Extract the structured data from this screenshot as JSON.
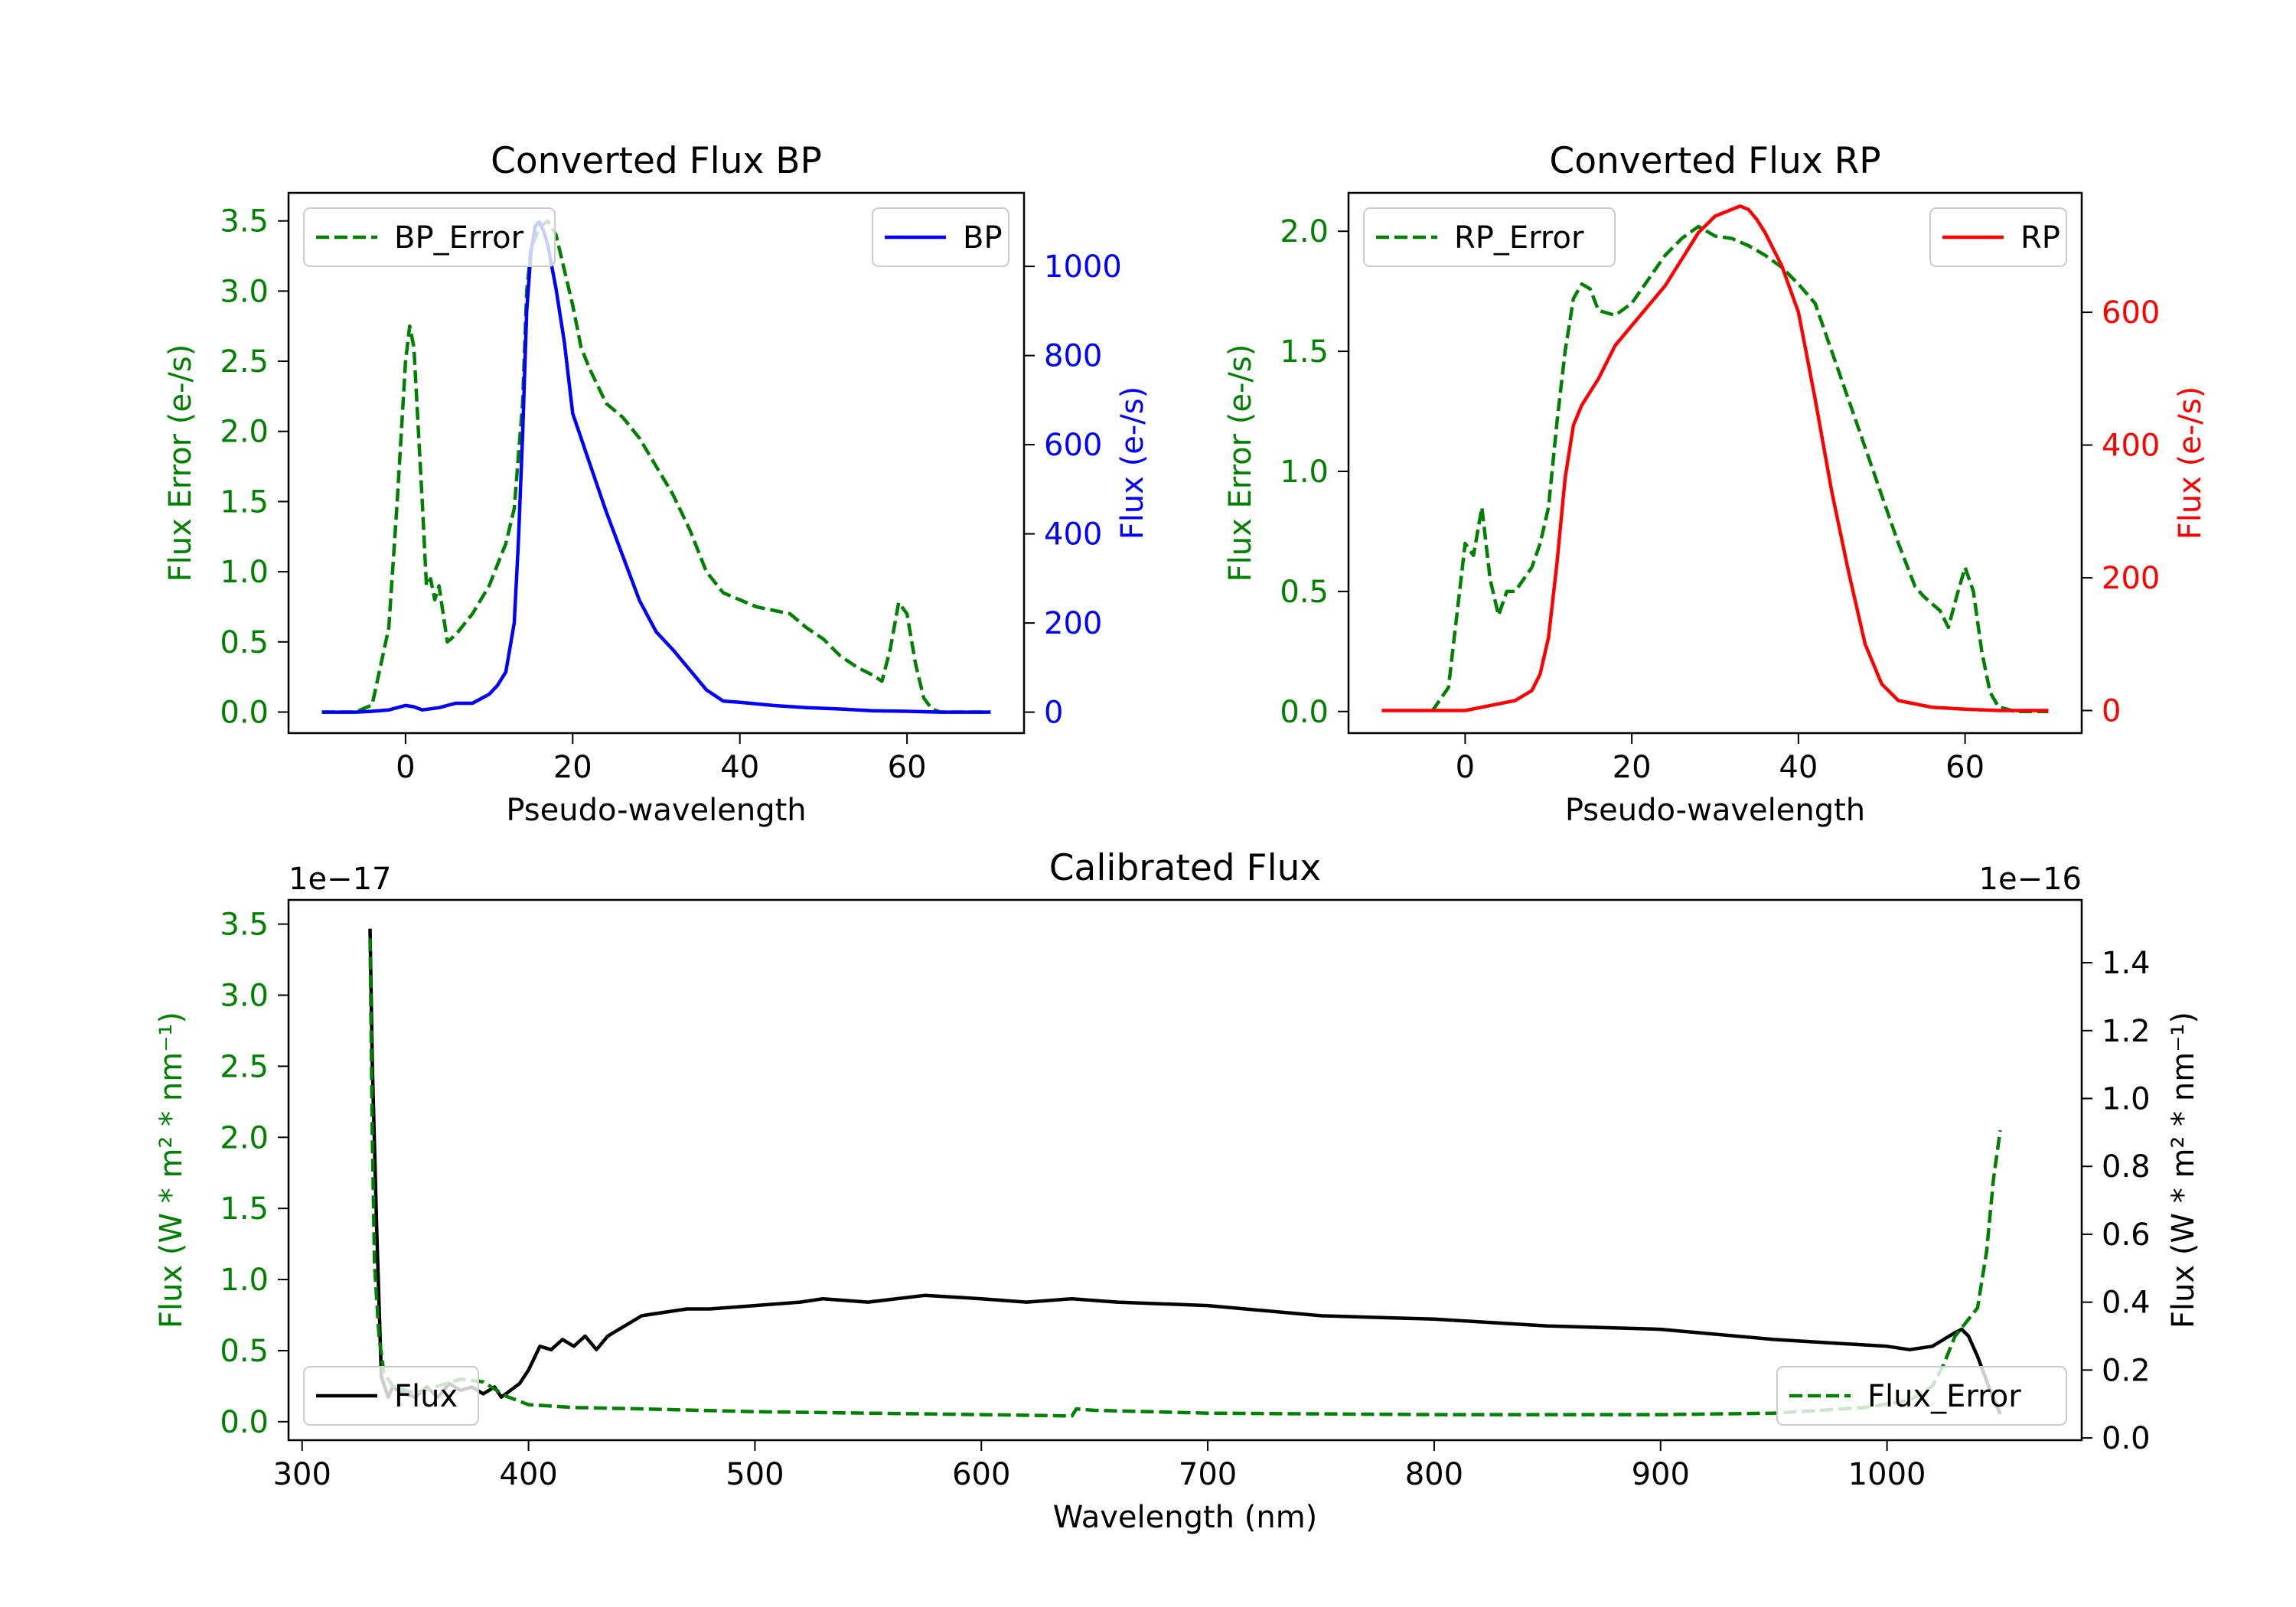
{
  "chart_data": [
    {
      "type": "line",
      "title": "Converted Flux BP",
      "xlabel": "Pseudo-wavelength",
      "ylabel_left": "Flux Error (e-/s)",
      "ylabel_right": "Flux (e-/s)",
      "xlim": [
        -14,
        74
      ],
      "ylim_left": [
        -0.15,
        3.7
      ],
      "ylim_right": [
        -47,
        1165
      ],
      "xticks": [
        0,
        20,
        40,
        60
      ],
      "yticks_left": [
        0.0,
        0.5,
        1.0,
        1.5,
        2.0,
        2.5,
        3.0,
        3.5
      ],
      "yticks_right": [
        0,
        200,
        400,
        600,
        800,
        1000
      ],
      "colors": {
        "left": "#008000",
        "right": "#0000ff"
      },
      "series": [
        {
          "name": "BP_Error",
          "axis": "left",
          "style": "dashed",
          "color": "#008000",
          "legend": "top-left",
          "x": [
            -10,
            -6,
            -4,
            -2,
            -1,
            0,
            0.5,
            1,
            2,
            2.5,
            3,
            3.5,
            4,
            5,
            6,
            8,
            10,
            12,
            13,
            14,
            14.5,
            15,
            16,
            17,
            18,
            20,
            21,
            22,
            24,
            26,
            28,
            30,
            32,
            34,
            36,
            38,
            40,
            42,
            46,
            48,
            50,
            52,
            54,
            56,
            57,
            58,
            59,
            60,
            61,
            62,
            63,
            64,
            66,
            70
          ],
          "values": [
            0,
            0,
            0.05,
            0.6,
            1.5,
            2.5,
            2.75,
            2.6,
            1.5,
            0.9,
            0.95,
            0.8,
            0.9,
            0.5,
            0.55,
            0.7,
            0.9,
            1.2,
            1.45,
            2.2,
            3.0,
            3.3,
            3.45,
            3.5,
            3.4,
            2.9,
            2.6,
            2.45,
            2.2,
            2.1,
            1.95,
            1.75,
            1.55,
            1.3,
            1.0,
            0.85,
            0.8,
            0.75,
            0.7,
            0.6,
            0.52,
            0.4,
            0.32,
            0.26,
            0.22,
            0.45,
            0.78,
            0.7,
            0.35,
            0.1,
            0.02,
            0,
            0,
            0
          ]
        },
        {
          "name": "BP",
          "axis": "right",
          "style": "solid",
          "color": "#0000ff",
          "legend": "top-right",
          "x": [
            -10,
            -6,
            -4,
            -2,
            0,
            1,
            2,
            4,
            6,
            8,
            10,
            11,
            12,
            13,
            13.5,
            14,
            14.5,
            15,
            15.5,
            16,
            16.5,
            17,
            18,
            19,
            20,
            22,
            24,
            26,
            28,
            30,
            31,
            32,
            34,
            36,
            38,
            40,
            44,
            48,
            52,
            56,
            60,
            64,
            70
          ],
          "values": [
            0,
            0,
            2,
            5,
            15,
            12,
            5,
            10,
            20,
            20,
            40,
            60,
            90,
            200,
            380,
            620,
            900,
            1030,
            1090,
            1100,
            1080,
            1050,
            950,
            830,
            670,
            560,
            450,
            350,
            250,
            180,
            160,
            140,
            95,
            50,
            25,
            22,
            15,
            10,
            7,
            3,
            2,
            0,
            0
          ]
        }
      ],
      "legend_labels": [
        "BP_Error",
        "BP"
      ]
    },
    {
      "type": "line",
      "title": "Converted Flux RP",
      "xlabel": "Pseudo-wavelength",
      "ylabel_left": "Flux Error (e-/s)",
      "ylabel_right": "Flux (e-/s)",
      "xlim": [
        -14,
        74
      ],
      "ylim_left": [
        -0.09,
        2.16
      ],
      "ylim_right": [
        -34,
        780
      ],
      "xticks": [
        0,
        20,
        40,
        60
      ],
      "yticks_left": [
        0.0,
        0.5,
        1.0,
        1.5,
        2.0
      ],
      "yticks_right": [
        0,
        200,
        400,
        600
      ],
      "colors": {
        "left": "#008000",
        "right": "#ff0000"
      },
      "series": [
        {
          "name": "RP_Error",
          "axis": "left",
          "style": "dashed",
          "color": "#008000",
          "legend": "top-left",
          "x": [
            -4,
            -2,
            -1,
            0,
            1,
            2,
            3,
            4,
            5,
            6,
            8,
            9,
            10,
            11,
            12,
            13,
            14,
            15,
            16,
            18,
            20,
            22,
            24,
            26,
            28,
            30,
            32,
            34,
            36,
            38,
            40,
            42,
            44,
            46,
            48,
            50,
            52,
            54,
            55,
            56,
            57,
            58,
            59,
            60,
            61,
            62,
            63,
            64,
            66,
            70
          ],
          "values": [
            0,
            0.1,
            0.4,
            0.7,
            0.65,
            0.85,
            0.55,
            0.4,
            0.5,
            0.5,
            0.6,
            0.7,
            0.85,
            1.2,
            1.5,
            1.72,
            1.78,
            1.76,
            1.67,
            1.65,
            1.7,
            1.8,
            1.9,
            1.97,
            2.02,
            1.98,
            1.97,
            1.94,
            1.9,
            1.85,
            1.78,
            1.7,
            1.5,
            1.3,
            1.1,
            0.9,
            0.7,
            0.52,
            0.48,
            0.45,
            0.42,
            0.35,
            0.48,
            0.6,
            0.5,
            0.25,
            0.08,
            0.02,
            0,
            0
          ]
        },
        {
          "name": "RP",
          "axis": "right",
          "style": "solid",
          "color": "#ff0000",
          "legend": "top-right",
          "x": [
            -10,
            -4,
            0,
            2,
            4,
            6,
            8,
            9,
            10,
            11,
            12,
            13,
            14,
            16,
            18,
            20,
            22,
            24,
            26,
            28,
            30,
            32,
            33,
            34,
            35,
            36,
            38,
            40,
            42,
            44,
            46,
            48,
            50,
            52,
            56,
            60,
            64,
            70
          ],
          "values": [
            0,
            0,
            0,
            5,
            10,
            15,
            30,
            55,
            110,
            220,
            350,
            430,
            460,
            500,
            550,
            580,
            610,
            640,
            680,
            720,
            745,
            755,
            760,
            755,
            740,
            720,
            670,
            600,
            470,
            330,
            210,
            100,
            40,
            15,
            5,
            2,
            0,
            0
          ]
        }
      ],
      "legend_labels": [
        "RP_Error",
        "RP"
      ]
    },
    {
      "type": "line",
      "title": "Calibrated Flux",
      "xlabel": "Wavelength (nm)",
      "ylabel_left": "Flux (W * m² * nm⁻¹)",
      "ylabel_right": "Flux (W * m² * nm⁻¹)",
      "left_offset_label": "1e−17",
      "right_offset_label": "1e−16",
      "xlim": [
        294,
        1086
      ],
      "ylim_left": [
        -0.13,
        3.67
      ],
      "ylim_right": [
        -0.0066,
        1.585
      ],
      "xticks": [
        300,
        400,
        500,
        600,
        700,
        800,
        900,
        1000
      ],
      "yticks_left": [
        0.0,
        0.5,
        1.0,
        1.5,
        2.0,
        2.5,
        3.0,
        3.5
      ],
      "yticks_right": [
        0.0,
        0.2,
        0.4,
        0.6,
        0.8,
        1.0,
        1.2,
        1.4
      ],
      "colors": {
        "left": "#008000",
        "right": "#000000"
      },
      "series": [
        {
          "name": "Flux",
          "axis": "right",
          "style": "solid",
          "color": "#000000",
          "legend": "bottom-left",
          "x": [
            330,
            331,
            333,
            335,
            338,
            340,
            345,
            350,
            355,
            360,
            365,
            370,
            375,
            380,
            385,
            388,
            392,
            396,
            400,
            405,
            410,
            415,
            420,
            425,
            430,
            435,
            440,
            445,
            450,
            460,
            470,
            480,
            500,
            520,
            530,
            550,
            575,
            600,
            620,
            640,
            660,
            700,
            750,
            800,
            850,
            900,
            950,
            1000,
            1010,
            1020,
            1030,
            1033,
            1036,
            1040,
            1045,
            1050
          ],
          "values": [
            1.5,
            1.1,
            0.6,
            0.18,
            0.12,
            0.15,
            0.13,
            0.12,
            0.15,
            0.12,
            0.16,
            0.14,
            0.15,
            0.13,
            0.15,
            0.12,
            0.14,
            0.16,
            0.2,
            0.27,
            0.26,
            0.29,
            0.27,
            0.3,
            0.26,
            0.3,
            0.32,
            0.34,
            0.36,
            0.37,
            0.38,
            0.38,
            0.39,
            0.4,
            0.41,
            0.4,
            0.42,
            0.41,
            0.4,
            0.41,
            0.4,
            0.39,
            0.36,
            0.35,
            0.33,
            0.32,
            0.29,
            0.27,
            0.26,
            0.27,
            0.31,
            0.32,
            0.3,
            0.24,
            0.15,
            0.07
          ]
        },
        {
          "name": "Flux_Error",
          "axis": "left",
          "style": "dashed",
          "color": "#008000",
          "legend": "bottom-right",
          "x": [
            330,
            331,
            332,
            334,
            336,
            340,
            350,
            360,
            370,
            380,
            390,
            400,
            420,
            450,
            500,
            550,
            600,
            640,
            642,
            650,
            700,
            800,
            900,
            950,
            990,
            1010,
            1020,
            1025,
            1030,
            1035,
            1040,
            1044,
            1047,
            1050
          ],
          "values": [
            3.4,
            2.0,
            1.1,
            0.6,
            0.35,
            0.25,
            0.2,
            0.25,
            0.3,
            0.28,
            0.18,
            0.12,
            0.1,
            0.09,
            0.07,
            0.06,
            0.05,
            0.04,
            0.09,
            0.08,
            0.06,
            0.05,
            0.05,
            0.06,
            0.1,
            0.15,
            0.25,
            0.4,
            0.6,
            0.7,
            0.8,
            1.2,
            1.7,
            2.05
          ]
        }
      ],
      "legend_labels": [
        "Flux",
        "Flux_Error"
      ]
    }
  ]
}
